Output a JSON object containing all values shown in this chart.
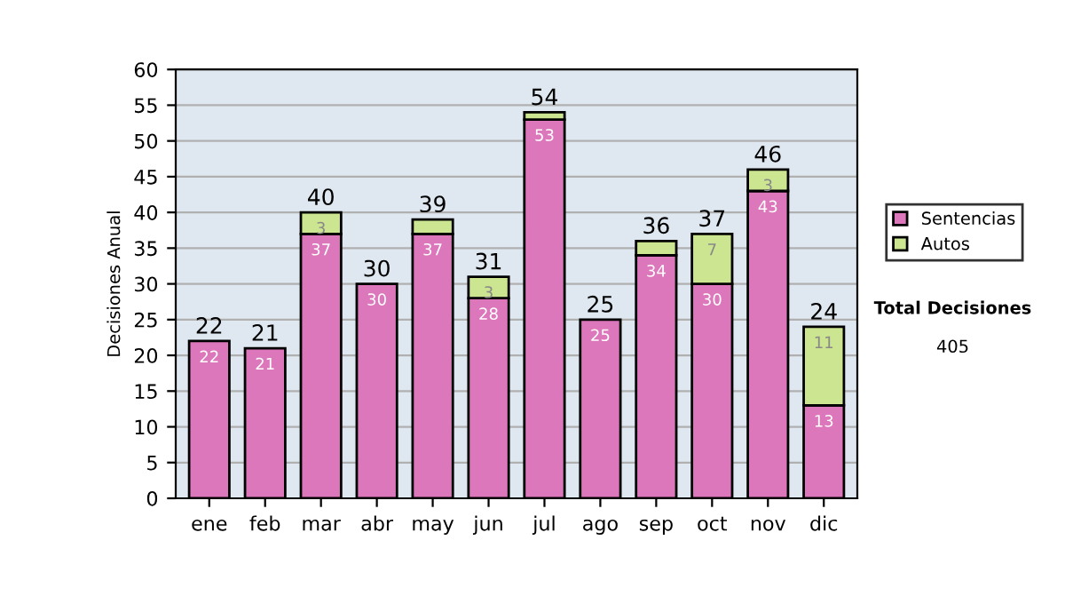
{
  "chart_data": {
    "type": "bar",
    "stacked": true,
    "ylabel": "Decisiones Anual",
    "categories": [
      "ene",
      "feb",
      "mar",
      "abr",
      "may",
      "jun",
      "jul",
      "ago",
      "sep",
      "oct",
      "nov",
      "dic"
    ],
    "series": [
      {
        "name": "Sentencias",
        "color": "#dd77bb",
        "values": [
          22,
          21,
          37,
          30,
          37,
          28,
          53,
          25,
          34,
          30,
          43,
          13
        ],
        "value_labels": [
          "22",
          "21",
          "37",
          "30",
          "37",
          "28",
          "53",
          "25",
          "34",
          "30",
          "43",
          "13"
        ]
      },
      {
        "name": "Autos",
        "color": "#cce590",
        "values": [
          0,
          0,
          3,
          0,
          2,
          3,
          1,
          0,
          2,
          7,
          3,
          11
        ],
        "value_labels": [
          null,
          null,
          "3",
          null,
          null,
          "3",
          null,
          null,
          null,
          "7",
          "3",
          "11"
        ]
      }
    ],
    "totals": [
      "22",
      "21",
      "40",
      "30",
      "39",
      "31",
      "54",
      "25",
      "36",
      "37",
      "46",
      "24"
    ],
    "ylim": [
      0,
      60
    ],
    "yticks": [
      0,
      5,
      10,
      15,
      20,
      25,
      30,
      35,
      40,
      45,
      50,
      55,
      60
    ],
    "grid": "y",
    "legend": "right",
    "annotations": [
      "Total Decisiones",
      "405"
    ]
  }
}
